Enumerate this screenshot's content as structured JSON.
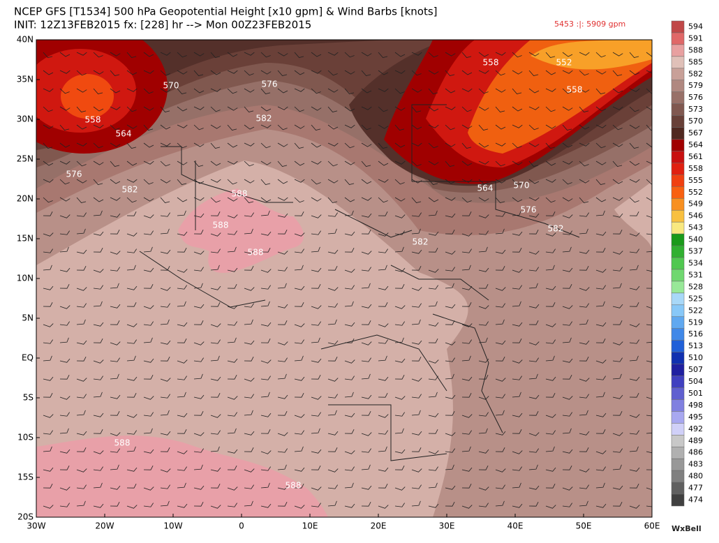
{
  "header": {
    "title": "NCEP GFS [T1534] 500 hPa Geopotential Height [x10 gpm] & Wind Barbs [knots]",
    "init": "INIT: 12Z13FEB2015 fx: [228] hr --> Mon 00Z23FEB2015",
    "range": "5453 :|: 5909 gpm"
  },
  "map": {
    "lat_labels": [
      "40N",
      "35N",
      "30N",
      "25N",
      "20N",
      "15N",
      "10N",
      "5N",
      "EQ",
      "5S",
      "10S",
      "15S",
      "20S"
    ],
    "lon_labels": [
      "30W",
      "20W",
      "10W",
      "0",
      "10E",
      "20E",
      "30E",
      "40E",
      "50E",
      "60E"
    ],
    "contour_labels": [
      "558",
      "564",
      "570",
      "576",
      "582",
      "576",
      "582",
      "588",
      "588",
      "588",
      "558",
      "552",
      "558",
      "564",
      "570",
      "576",
      "582",
      "582",
      "588",
      "588"
    ]
  },
  "colorbar": {
    "levels": [
      "594",
      "591",
      "588",
      "585",
      "582",
      "579",
      "576",
      "573",
      "570",
      "567",
      "564",
      "561",
      "558",
      "555",
      "552",
      "549",
      "546",
      "543",
      "540",
      "537",
      "534",
      "531",
      "528",
      "525",
      "522",
      "519",
      "516",
      "513",
      "510",
      "507",
      "504",
      "501",
      "498",
      "495",
      "492",
      "489",
      "486",
      "483",
      "480",
      "477",
      "474"
    ],
    "colors": [
      "#c04848",
      "#e06868",
      "#e8a0a0",
      "#e0c0b8",
      "#c8a098",
      "#b08880",
      "#987068",
      "#805850",
      "#684038",
      "#502820",
      "#a00000",
      "#c81010",
      "#e02010",
      "#f04010",
      "#f86010",
      "#f89020",
      "#f8c040",
      "#f8e880",
      "#1a9a1a",
      "#30b030",
      "#50c850",
      "#70d870",
      "#98e898",
      "#a8d8f8",
      "#88c8f8",
      "#60a8f0",
      "#4088e8",
      "#2060d8",
      "#1030b0",
      "#2020a0",
      "#4040c0",
      "#6060d0",
      "#8080e0",
      "#a8a8f0",
      "#d0d0f8",
      "#c8c8c8",
      "#b0b0b0",
      "#989898",
      "#808080",
      "#606060",
      "#404040"
    ]
  },
  "brand": "WxBell"
}
